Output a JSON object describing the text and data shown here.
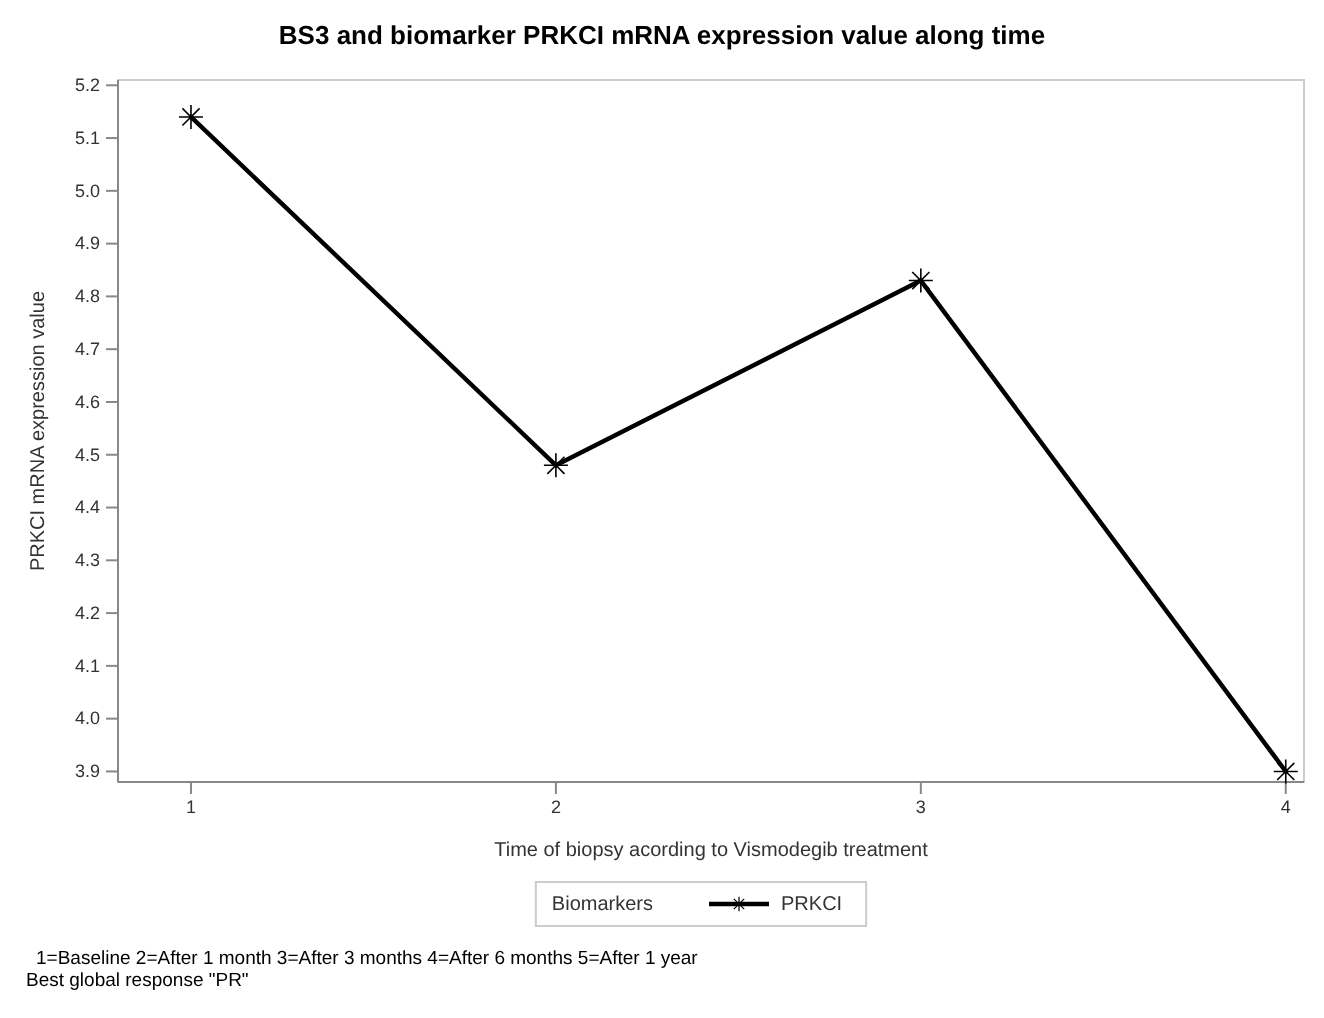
{
  "chart_data": {
    "type": "line",
    "title": "BS3 and biomarker PRKCI mRNA expression value along time",
    "xlabel": "Time of biopsy acording to Vismodegib treatment",
    "ylabel": "PRKCI mRNA expression value",
    "legend_title": "Biomarkers",
    "x": [
      1,
      2,
      3,
      4
    ],
    "series": [
      {
        "name": "PRKCI",
        "color": "#000000",
        "values": [
          5.14,
          4.48,
          4.83,
          3.9
        ]
      }
    ],
    "xlim": [
      0.8,
      4.05
    ],
    "xticks": [
      1,
      2,
      3,
      4
    ],
    "ylim": [
      3.88,
      5.21
    ],
    "yticks": [
      {
        "value": 3.9,
        "label": "3.9"
      },
      {
        "value": 4.0,
        "label": "4.0"
      },
      {
        "value": 4.1,
        "label": "4.1"
      },
      {
        "value": 4.2,
        "label": "4.2"
      },
      {
        "value": 4.3,
        "label": "4.3"
      },
      {
        "value": 4.4,
        "label": "4.4"
      },
      {
        "value": 4.5,
        "label": "4.5"
      },
      {
        "value": 4.6,
        "label": "4.6"
      },
      {
        "value": 4.7,
        "label": "4.7"
      },
      {
        "value": 4.8,
        "label": "4.8"
      },
      {
        "value": 4.9,
        "label": "4.9"
      },
      {
        "value": 5.0,
        "label": "5.0"
      },
      {
        "value": 5.1,
        "label": "5.1"
      },
      {
        "value": 5.2,
        "label": "5.2"
      }
    ],
    "marker": "cross",
    "line_style": "solid",
    "legend": "bottom",
    "grid": false,
    "annotations": [
      "1=Baseline 2=After 1 month 3=After 3 months 4=After 6 months 5=After 1 year",
      "Best global response \"PR\""
    ]
  }
}
